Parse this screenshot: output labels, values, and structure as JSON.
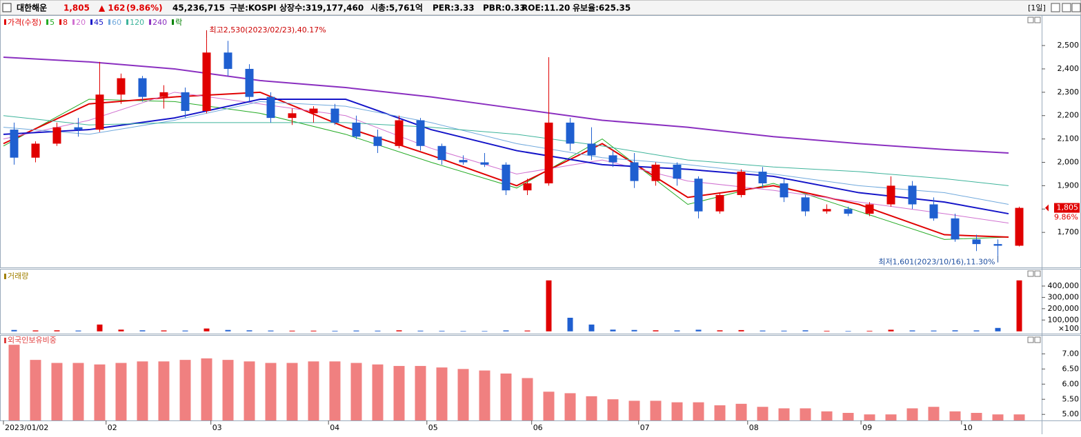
{
  "header": {
    "name": "대한해운",
    "price": "1,805",
    "change": "▲ 162",
    "change_pct": "(9.86%)",
    "volume": "45,236,715",
    "market": "구분:KOSPI",
    "shares": "상장수:319,177,460",
    "cap": "시총:5,761억",
    "per": "PER:3.33",
    "pbr": "PBR:0.33",
    "roe": "ROE:11.20",
    "reserve": "유보율:625.35",
    "period": "[1일]"
  },
  "chart_data": [
    {
      "type": "candlestick",
      "legend_price": {
        "name": "가격(수정)",
        "color": "#e00000"
      },
      "legend_lock": {
        "name": "락",
        "color": "#008000"
      },
      "up_color": "#e00000",
      "down_color": "#1f5fd0",
      "xlim": [
        0,
        48
      ],
      "ylim": [
        1550,
        2630
      ],
      "yticks": [
        {
          "value": 1700,
          "label": "1,700"
        },
        {
          "value": 1800,
          "label": "1,800"
        },
        {
          "value": 1900,
          "label": "1,900"
        },
        {
          "value": 2000,
          "label": "2,000"
        },
        {
          "value": 2100,
          "label": "2,100"
        },
        {
          "value": 2200,
          "label": "2,200"
        },
        {
          "value": 2300,
          "label": "2,300"
        },
        {
          "value": 2400,
          "label": "2,400"
        },
        {
          "value": 2500,
          "label": "2,500"
        }
      ],
      "open": [
        2140,
        2020,
        2080,
        2150,
        2140,
        2290,
        2360,
        2280,
        2300,
        2220,
        2470,
        2400,
        2280,
        2190,
        2210,
        2230,
        2170,
        2110,
        2070,
        2180,
        2070,
        2010,
        2000,
        1990,
        1880,
        1910,
        2170,
        2080,
        2030,
        2000,
        1920,
        1990,
        1930,
        1790,
        1860,
        1960,
        1910,
        1850,
        1790,
        1800,
        1780,
        1820,
        1900,
        1820,
        1760,
        1670,
        1650,
        1643
      ],
      "high": [
        2170,
        2090,
        2170,
        2190,
        2430,
        2380,
        2370,
        2330,
        2320,
        2530,
        2520,
        2420,
        2300,
        2230,
        2240,
        2250,
        2200,
        2140,
        2200,
        2190,
        2080,
        2030,
        2040,
        2000,
        1930,
        2450,
        2190,
        2150,
        2050,
        2040,
        2000,
        2000,
        1940,
        1870,
        1970,
        1980,
        1930,
        1860,
        1820,
        1810,
        1830,
        1940,
        1920,
        1850,
        1780,
        1690,
        1670,
        1810
      ],
      "low": [
        1990,
        2000,
        2070,
        2110,
        2130,
        2250,
        2260,
        2230,
        2190,
        2210,
        2370,
        2260,
        2170,
        2160,
        2170,
        2160,
        2100,
        2040,
        2060,
        2050,
        1990,
        1990,
        1980,
        1860,
        1860,
        1900,
        2050,
        2010,
        1980,
        1890,
        1900,
        1900,
        1760,
        1780,
        1850,
        1890,
        1830,
        1770,
        1780,
        1770,
        1770,
        1810,
        1800,
        1750,
        1660,
        1620,
        1601,
        1640
      ],
      "close": [
        2020,
        2080,
        2150,
        2140,
        2290,
        2360,
        2280,
        2300,
        2220,
        2470,
        2400,
        2280,
        2190,
        2210,
        2230,
        2170,
        2110,
        2070,
        2180,
        2070,
        2010,
        2000,
        1990,
        1880,
        1910,
        2170,
        2080,
        2030,
        2000,
        1920,
        1990,
        1930,
        1790,
        1860,
        1960,
        1910,
        1850,
        1790,
        1800,
        1780,
        1820,
        1900,
        1820,
        1760,
        1670,
        1650,
        1643,
        1805
      ],
      "series": [
        {
          "name": "5",
          "color": "#22aa22",
          "width": 1,
          "x": [
            0,
            4,
            8,
            12,
            16,
            20,
            24,
            28,
            32,
            36,
            40,
            44,
            47
          ],
          "values": [
            2070,
            2270,
            2260,
            2210,
            2120,
            2000,
            1890,
            2100,
            1820,
            1910,
            1790,
            1670,
            1680
          ]
        },
        {
          "name": "8",
          "color": "#e00000",
          "width": 2,
          "x": [
            0,
            4,
            8,
            12,
            16,
            20,
            24,
            28,
            32,
            36,
            40,
            44,
            47
          ],
          "values": [
            2080,
            2250,
            2280,
            2300,
            2150,
            2030,
            1900,
            2080,
            1850,
            1900,
            1820,
            1690,
            1680
          ]
        },
        {
          "name": "20",
          "color": "#d070d0",
          "width": 1,
          "x": [
            0,
            4,
            8,
            12,
            16,
            20,
            24,
            28,
            32,
            36,
            40,
            44,
            47
          ],
          "values": [
            2100,
            2180,
            2300,
            2250,
            2200,
            2060,
            1950,
            2010,
            1920,
            1880,
            1830,
            1780,
            1740
          ]
        },
        {
          "name": "45",
          "color": "#1414c8",
          "width": 2,
          "x": [
            0,
            4,
            8,
            12,
            16,
            20,
            24,
            28,
            32,
            36,
            40,
            44,
            47
          ],
          "values": [
            2120,
            2140,
            2190,
            2270,
            2270,
            2140,
            2050,
            1990,
            1970,
            1940,
            1870,
            1830,
            1780
          ]
        },
        {
          "name": "60",
          "color": "#6fa8dc",
          "width": 1,
          "x": [
            0,
            4,
            8,
            12,
            16,
            20,
            24,
            28,
            32,
            36,
            40,
            44,
            47
          ],
          "values": [
            2150,
            2120,
            2180,
            2260,
            2240,
            2170,
            2080,
            2020,
            1990,
            1950,
            1900,
            1870,
            1820
          ]
        },
        {
          "name": "120",
          "color": "#3cb39a",
          "width": 1,
          "x": [
            0,
            4,
            8,
            12,
            16,
            20,
            24,
            28,
            32,
            36,
            40,
            44,
            47
          ],
          "values": [
            2200,
            2160,
            2170,
            2170,
            2170,
            2150,
            2120,
            2070,
            2010,
            1980,
            1960,
            1930,
            1900
          ]
        },
        {
          "name": "240",
          "color": "#8a2fc0",
          "width": 2,
          "x": [
            0,
            4,
            8,
            12,
            16,
            20,
            24,
            28,
            32,
            36,
            40,
            44,
            47
          ],
          "values": [
            2450,
            2430,
            2400,
            2350,
            2320,
            2280,
            2230,
            2180,
            2150,
            2110,
            2080,
            2055,
            2040
          ]
        }
      ],
      "annotations": [
        {
          "text": "최고2,530(2023/02/23),40.17%",
          "x": 9,
          "y": 2530
        },
        {
          "text": "최저1,601(2023/10/16),11.30%",
          "x": 46,
          "y": 1601
        }
      ],
      "price_tag": {
        "value": 1805,
        "label": "1,805",
        "change": "9.86%"
      }
    },
    {
      "type": "volume",
      "title": "거래량",
      "title_color": "#a08000",
      "xlim": [
        0,
        48
      ],
      "ylim": [
        -20000,
        540000
      ],
      "unit_label": "×100",
      "yticks": [
        {
          "value": 100000,
          "label": "100,000"
        },
        {
          "value": 200000,
          "label": "200,000"
        },
        {
          "value": 300000,
          "label": "300,000"
        },
        {
          "value": 400000,
          "label": "400,000"
        }
      ],
      "values": [
        12000,
        8000,
        9000,
        7000,
        60000,
        15000,
        9000,
        8000,
        7000,
        25000,
        12000,
        9000,
        7000,
        6000,
        6000,
        5000,
        7000,
        6000,
        9000,
        6000,
        5000,
        4000,
        4000,
        8000,
        7000,
        450000,
        120000,
        60000,
        15000,
        12000,
        9000,
        8000,
        14000,
        9000,
        11000,
        7000,
        6000,
        9000,
        5000,
        4000,
        5000,
        14000,
        8000,
        7000,
        9000,
        8000,
        30000,
        450000
      ]
    },
    {
      "type": "bar",
      "title": "외국인보유비중",
      "title_color": "#e04040",
      "color": "#f08080",
      "xlim": [
        0,
        48
      ],
      "ylim": [
        4.8,
        7.6
      ],
      "yticks": [
        {
          "value": 5,
          "label": "5.00"
        },
        {
          "value": 5.5,
          "label": "5.50"
        },
        {
          "value": 6,
          "label": "6.00"
        },
        {
          "value": 6.5,
          "label": "6.50"
        },
        {
          "value": 7,
          "label": "7.00"
        }
      ],
      "xticks": [
        {
          "value": 0,
          "label": "2023/01/02"
        },
        {
          "value": 4.8,
          "label": "02"
        },
        {
          "value": 9.7,
          "label": "03"
        },
        {
          "value": 15.2,
          "label": "04"
        },
        {
          "value": 19.8,
          "label": "05"
        },
        {
          "value": 24.7,
          "label": "06"
        },
        {
          "value": 29.7,
          "label": "07"
        },
        {
          "value": 34.8,
          "label": "08"
        },
        {
          "value": 40.1,
          "label": "09"
        },
        {
          "value": 44.8,
          "label": "10"
        }
      ],
      "values": [
        7.3,
        6.8,
        6.7,
        6.7,
        6.65,
        6.7,
        6.75,
        6.75,
        6.8,
        6.85,
        6.8,
        6.75,
        6.7,
        6.7,
        6.75,
        6.75,
        6.7,
        6.65,
        6.6,
        6.6,
        6.55,
        6.5,
        6.45,
        6.35,
        6.2,
        5.75,
        5.7,
        5.6,
        5.5,
        5.45,
        5.45,
        5.4,
        5.4,
        5.3,
        5.35,
        5.25,
        5.2,
        5.2,
        5.1,
        5.05,
        5.0,
        5.0,
        5.2,
        5.25,
        5.1,
        5.05,
        5.0,
        5.0
      ]
    }
  ]
}
